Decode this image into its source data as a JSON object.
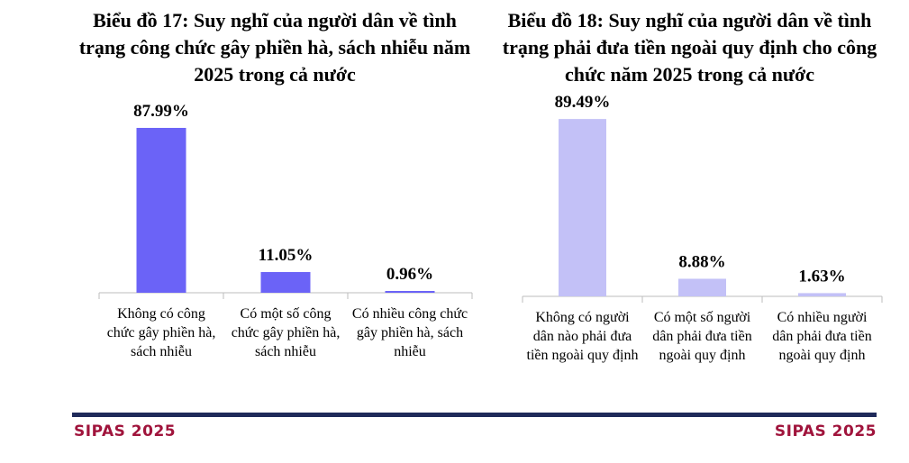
{
  "chart_data": [
    {
      "type": "bar",
      "title": "Biểu đồ 17: Suy nghĩ của người dân về tình trạng công chức gây phiền hà, sách nhiễu năm 2025 trong cả nước",
      "categories": [
        "Không có công chức gây phiền hà, sách nhiễu",
        "Có một số công chức gây phiền hà, sách nhiễu",
        "Có nhiều công chức gây phiền hà, sách nhiễu"
      ],
      "values": [
        87.99,
        11.05,
        0.96
      ],
      "value_labels": [
        "87.99%",
        "11.05%",
        "0.96%"
      ],
      "ylim": [
        0,
        100
      ],
      "bar_color": "#6b63f7",
      "grid": false,
      "legend": "none"
    },
    {
      "type": "bar",
      "title": "Biểu đồ 18: Suy nghĩ của người dân về tình trạng phải đưa tiền ngoài quy định cho công chức năm 2025 trong cả nước",
      "categories": [
        "Không có người dân nào phải đưa tiền ngoài quy định",
        "Có một số người dân phải đưa tiền ngoài quy định",
        "Có nhiều người dân phải đưa tiền ngoài quy định"
      ],
      "values": [
        89.49,
        8.88,
        1.63
      ],
      "value_labels": [
        "89.49%",
        "8.88%",
        "1.63%"
      ],
      "ylim": [
        0,
        100
      ],
      "bar_color": "#c3c1f7",
      "grid": false,
      "legend": "none"
    }
  ],
  "footer": {
    "left": "SIPAS 2025",
    "right": "SIPAS 2025",
    "bar_color": "#1f2a5a",
    "text_color": "#a0143c"
  }
}
